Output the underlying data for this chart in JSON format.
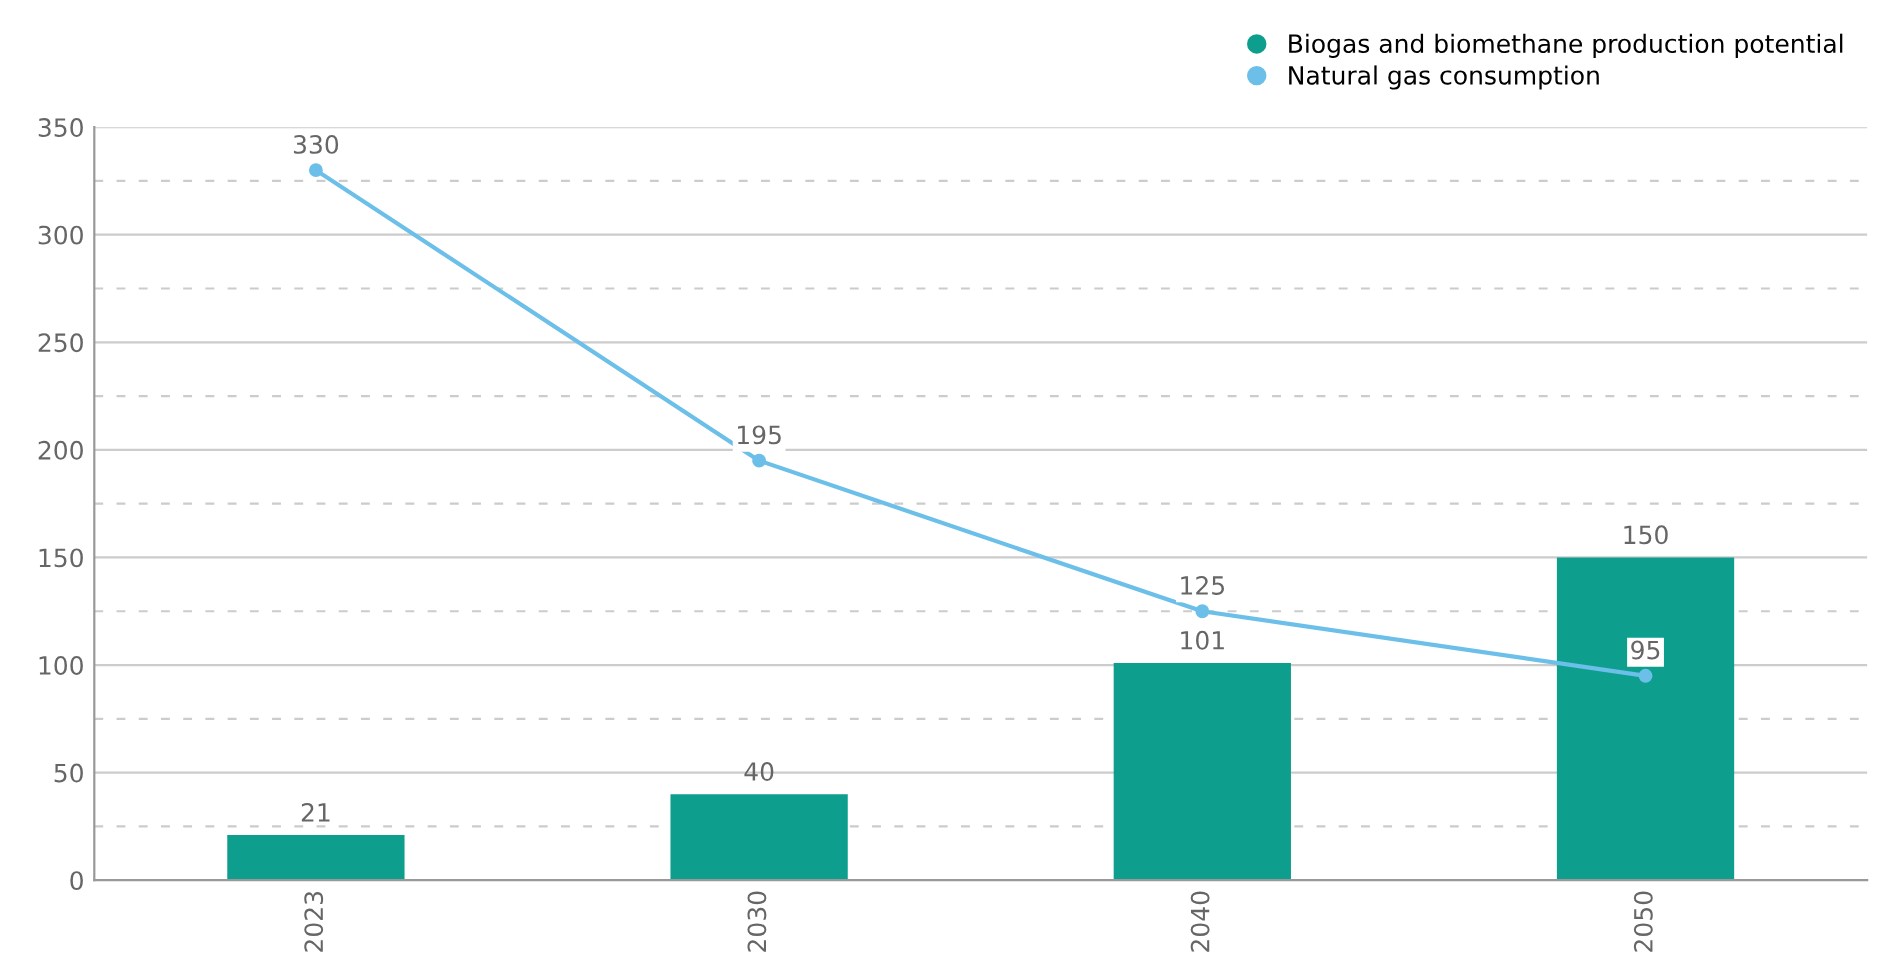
{
  "chart_data": {
    "type": "bar",
    "categories": [
      "2023",
      "2030",
      "2040",
      "2050"
    ],
    "series": [
      {
        "name": "Biogas and biomethane production potential",
        "color": "#0e9e8e",
        "values": [
          21,
          40,
          101,
          150
        ]
      },
      {
        "name": "Natural gas consumption",
        "type": "line",
        "color": "#6bbfe8",
        "values": [
          330,
          195,
          125,
          95
        ],
        "marker": "circle"
      }
    ],
    "ylim": [
      0,
      350
    ],
    "yticks": [
      0,
      {
        "value": 25,
        "label": null
      },
      50,
      {
        "value": 75,
        "label": null
      },
      100,
      {
        "value": 125,
        "label": null
      },
      150,
      {
        "value": 175,
        "label": null
      },
      200,
      {
        "value": 225,
        "label": null
      },
      250,
      {
        "value": 275,
        "label": null
      },
      300,
      {
        "value": 325,
        "label": null
      },
      350
    ],
    "grid": "y",
    "legend": "top right",
    "data_labels": true
  }
}
